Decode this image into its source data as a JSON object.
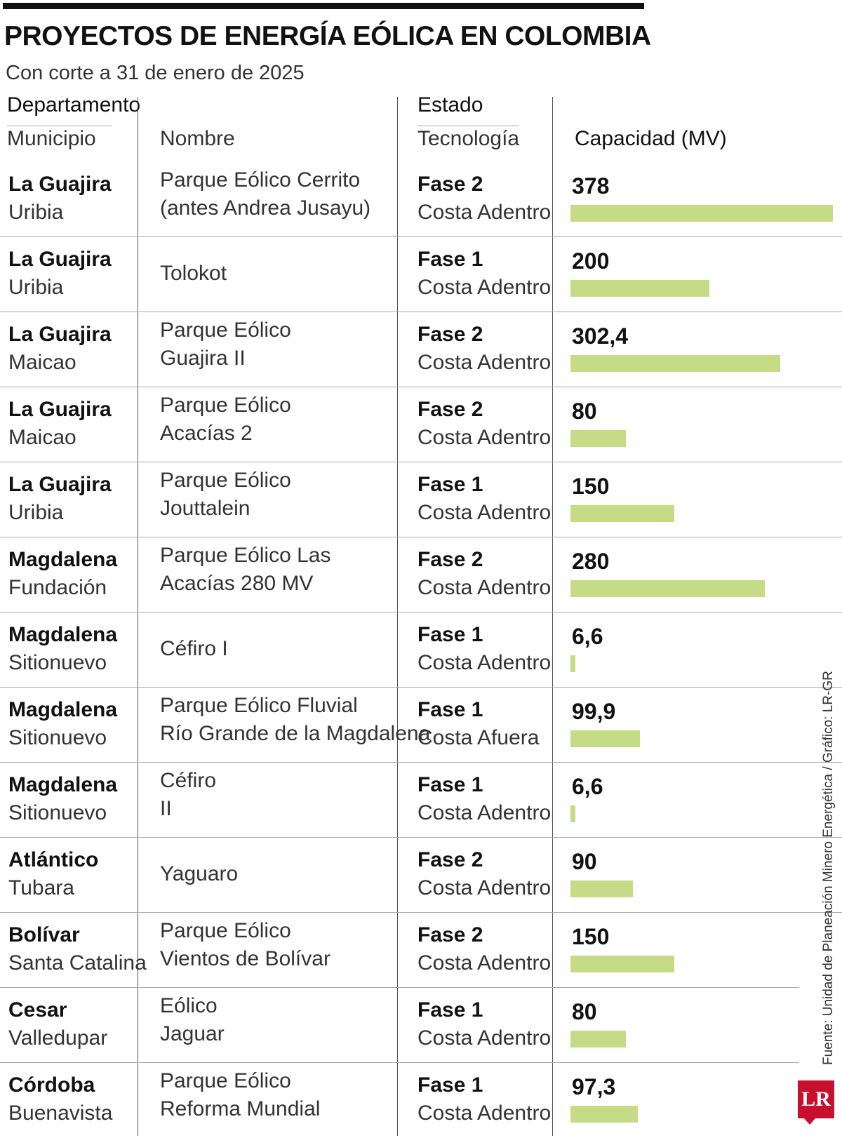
{
  "title": "PROYECTOS DE ENERGÍA EÓLICA EN COLOMBIA",
  "subtitle": "Con corte a 31 de enero de 2025",
  "headers": {
    "departamento": "Departamento",
    "municipio": "Municipio",
    "nombre": "Nombre",
    "estado": "Estado",
    "tecnologia": "Tecnología",
    "capacidad": "Capacidad (MV)"
  },
  "source": "Fuente: Unidad de Planeación Minero Energética / Gráfico: LR-GR",
  "logo": "LR",
  "colors": {
    "bar": "#c6db85",
    "logo": "#c8102e"
  },
  "chart_data": {
    "type": "bar",
    "title": "PROYECTOS DE ENERGÍA EÓLICA EN COLOMBIA",
    "subtitle": "Con corte a 31 de enero de 2025",
    "xlabel": "",
    "ylabel": "Capacidad (MV)",
    "orientation": "horizontal",
    "categories": [
      "Parque Eólico Cerrito (antes Andrea Jusayu)",
      "Tolokot",
      "Parque Eólico Guajira II",
      "Parque Eólico Acacías 2",
      "Parque Eólico Jouttalein",
      "Parque Eólico Las Acacías 280 MV",
      "Céfiro I",
      "Parque Eólico Fluvial Río Grande de la Magdalena",
      "Céfiro II",
      "Yaguaro",
      "Parque Eólico Vientos de Bolívar",
      "Eólico Jaguar",
      "Parque Eólico Reforma Mundial"
    ],
    "values": [
      378,
      200,
      302.4,
      80,
      150,
      280,
      6.6,
      99.9,
      6.6,
      90,
      150,
      80,
      97.3
    ],
    "xlim": [
      0,
      378
    ],
    "rows": [
      {
        "departamento": "La Guajira",
        "municipio": "Uribia",
        "nombre": [
          "Parque Eólico Cerrito",
          "(antes Andrea Jusayu)"
        ],
        "estado": "Fase 2",
        "tecnologia": "Costa Adentro",
        "capacidad": 378,
        "capacidad_label": "378"
      },
      {
        "departamento": "La Guajira",
        "municipio": "Uribia",
        "nombre": [
          "Tolokot"
        ],
        "estado": "Fase 1",
        "tecnologia": "Costa Adentro",
        "capacidad": 200,
        "capacidad_label": "200"
      },
      {
        "departamento": "La Guajira",
        "municipio": "Maicao",
        "nombre": [
          "Parque Eólico",
          "Guajira II"
        ],
        "estado": "Fase 2",
        "tecnologia": "Costa Adentro",
        "capacidad": 302.4,
        "capacidad_label": "302,4"
      },
      {
        "departamento": "La Guajira",
        "municipio": "Maicao",
        "nombre": [
          "Parque Eólico",
          "Acacías 2"
        ],
        "estado": "Fase 2",
        "tecnologia": "Costa Adentro",
        "capacidad": 80,
        "capacidad_label": "80"
      },
      {
        "departamento": "La Guajira",
        "municipio": "Uribia",
        "nombre": [
          "Parque Eólico",
          "Jouttalein"
        ],
        "estado": "Fase 1",
        "tecnologia": "Costa Adentro",
        "capacidad": 150,
        "capacidad_label": "150"
      },
      {
        "departamento": "Magdalena",
        "municipio": "Fundación",
        "nombre": [
          "Parque Eólico Las",
          "Acacías 280 MV"
        ],
        "estado": "Fase 2",
        "tecnologia": "Costa Adentro",
        "capacidad": 280,
        "capacidad_label": "280"
      },
      {
        "departamento": "Magdalena",
        "municipio": "Sitionuevo",
        "nombre": [
          "Céfiro I"
        ],
        "estado": "Fase 1",
        "tecnologia": "Costa Adentro",
        "capacidad": 6.6,
        "capacidad_label": "6,6"
      },
      {
        "departamento": "Magdalena",
        "municipio": "Sitionuevo",
        "nombre": [
          "Parque Eólico Fluvial",
          "Río Grande de la Magdalena"
        ],
        "estado": "Fase 1",
        "tecnologia": "Costa Afuera",
        "capacidad": 99.9,
        "capacidad_label": "99,9"
      },
      {
        "departamento": "Magdalena",
        "municipio": "Sitionuevo",
        "nombre": [
          "Céfiro",
          "II"
        ],
        "estado": "Fase 1",
        "tecnologia": "Costa Adentro",
        "capacidad": 6.6,
        "capacidad_label": "6,6"
      },
      {
        "departamento": "Atlántico",
        "municipio": "Tubara",
        "nombre": [
          "Yaguaro"
        ],
        "estado": "Fase 2",
        "tecnologia": "Costa Adentro",
        "capacidad": 90,
        "capacidad_label": "90"
      },
      {
        "departamento": "Bolívar",
        "municipio": "Santa Catalina",
        "nombre": [
          "Parque Eólico",
          "Vientos de Bolívar"
        ],
        "estado": "Fase 2",
        "tecnologia": "Costa Adentro",
        "capacidad": 150,
        "capacidad_label": "150"
      },
      {
        "departamento": "Cesar",
        "municipio": "Valledupar",
        "nombre": [
          "Eólico",
          "Jaguar"
        ],
        "estado": "Fase 1",
        "tecnologia": "Costa Adentro",
        "capacidad": 80,
        "capacidad_label": "80"
      },
      {
        "departamento": "Córdoba",
        "municipio": "Buenavista",
        "nombre": [
          "Parque Eólico",
          "Reforma Mundial"
        ],
        "estado": "Fase 1",
        "tecnologia": "Costa Adentro",
        "capacidad": 97.3,
        "capacidad_label": "97,3"
      }
    ]
  }
}
